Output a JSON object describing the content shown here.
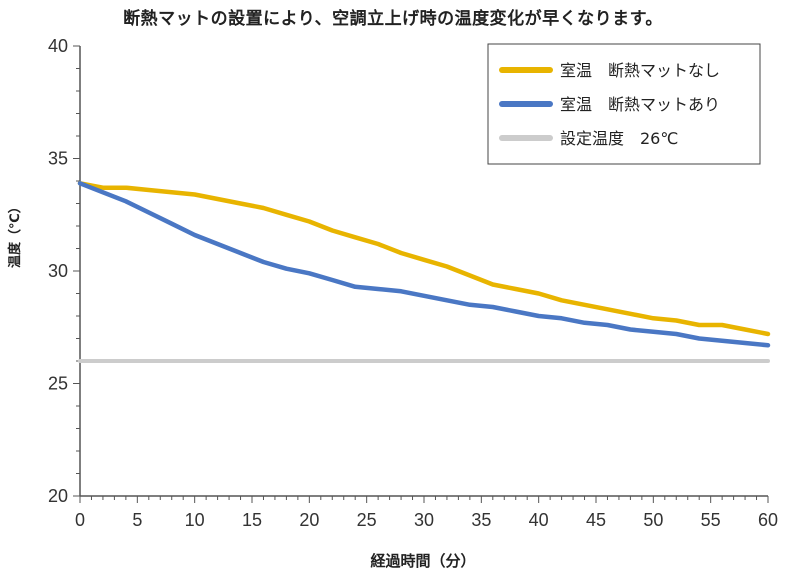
{
  "chart_data": {
    "type": "line",
    "title": "断熱マットの設置により、空調立上げ時の温度変化が早くなります。",
    "xlabel": "経過時間（分）",
    "ylabel": "温度（℃）",
    "xlim": [
      0,
      60
    ],
    "ylim": [
      20,
      40
    ],
    "x_ticks": [
      "0",
      "5",
      "10",
      "15",
      "20",
      "25",
      "30",
      "35",
      "40",
      "45",
      "50",
      "55",
      "60"
    ],
    "y_ticks": [
      "20",
      "25",
      "30",
      "35",
      "40"
    ],
    "grid": false,
    "legend_position": "top-right",
    "x": [
      0,
      2,
      4,
      6,
      8,
      10,
      12,
      14,
      16,
      18,
      20,
      22,
      24,
      26,
      28,
      30,
      32,
      34,
      36,
      38,
      40,
      42,
      44,
      46,
      48,
      50,
      52,
      54,
      56,
      58,
      60
    ],
    "series": [
      {
        "name": "室温　断熱マットなし",
        "color": "#e8b400",
        "values": [
          33.9,
          33.7,
          33.7,
          33.6,
          33.5,
          33.4,
          33.2,
          33.0,
          32.8,
          32.5,
          32.2,
          31.8,
          31.5,
          31.2,
          30.8,
          30.5,
          30.2,
          29.8,
          29.4,
          29.2,
          29.0,
          28.7,
          28.5,
          28.3,
          28.1,
          27.9,
          27.8,
          27.6,
          27.6,
          27.4,
          27.2
        ]
      },
      {
        "name": "室温　断熱マットあり",
        "color": "#4a77c4",
        "values": [
          33.9,
          33.5,
          33.1,
          32.6,
          32.1,
          31.6,
          31.2,
          30.8,
          30.4,
          30.1,
          29.9,
          29.6,
          29.3,
          29.2,
          29.1,
          28.9,
          28.7,
          28.5,
          28.4,
          28.2,
          28.0,
          27.9,
          27.7,
          27.6,
          27.4,
          27.3,
          27.2,
          27.0,
          26.9,
          26.8,
          26.7
        ]
      },
      {
        "name": "設定温度　26℃",
        "color": "#cccccc",
        "values": [
          26,
          26,
          26,
          26,
          26,
          26,
          26,
          26,
          26,
          26,
          26,
          26,
          26,
          26,
          26,
          26,
          26,
          26,
          26,
          26,
          26,
          26,
          26,
          26,
          26,
          26,
          26,
          26,
          26,
          26,
          26
        ]
      }
    ]
  }
}
